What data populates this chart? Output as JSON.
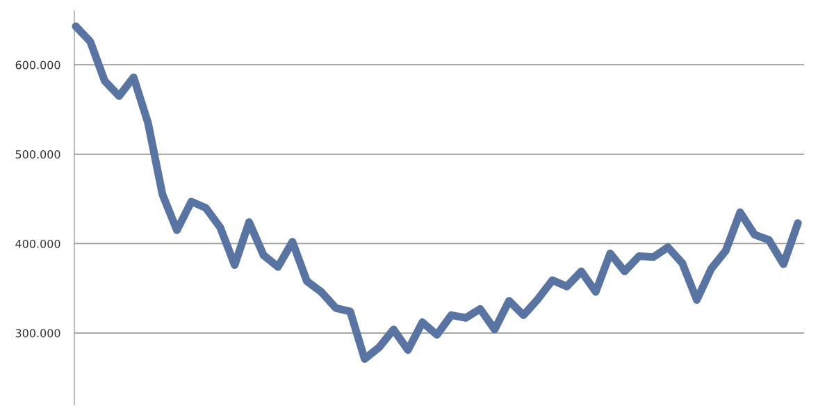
{
  "chart_data": {
    "type": "line",
    "categories": [
      null,
      null,
      null,
      null,
      null,
      null,
      null,
      null,
      null,
      null,
      null,
      null,
      null,
      null,
      null,
      null,
      null,
      null,
      null,
      null,
      null,
      null,
      null,
      null,
      null,
      null,
      null,
      null,
      null,
      null,
      null,
      null,
      null,
      null,
      null,
      null,
      null,
      null,
      null,
      null,
      null,
      null,
      null,
      null,
      null,
      null,
      null,
      null,
      null,
      null,
      null
    ],
    "series": [
      {
        "color": "#5874a3",
        "values": [
          643000,
          626000,
          582000,
          565000,
          586000,
          535000,
          455000,
          415000,
          447000,
          440000,
          418000,
          376000,
          424000,
          387000,
          374000,
          402000,
          358000,
          346000,
          328000,
          324000,
          271000,
          284000,
          304000,
          281000,
          312000,
          298000,
          320000,
          317000,
          327000,
          304000,
          336000,
          320000,
          338000,
          359000,
          352000,
          369000,
          346000,
          389000,
          369000,
          386000,
          385000,
          396000,
          378000,
          337000,
          372000,
          392000,
          435000,
          410000,
          404000,
          377000,
          423000
        ]
      }
    ],
    "ylim": [
      220000,
      660000
    ],
    "yticks": [
      {
        "value": 300000,
        "label": "300.000"
      },
      {
        "value": 400000,
        "label": "400.000"
      },
      {
        "value": 500000,
        "label": "500.000"
      },
      {
        "value": 600000,
        "label": "600.000"
      }
    ],
    "grid": "y",
    "tick_labels": "y",
    "line_style": "solid"
  }
}
